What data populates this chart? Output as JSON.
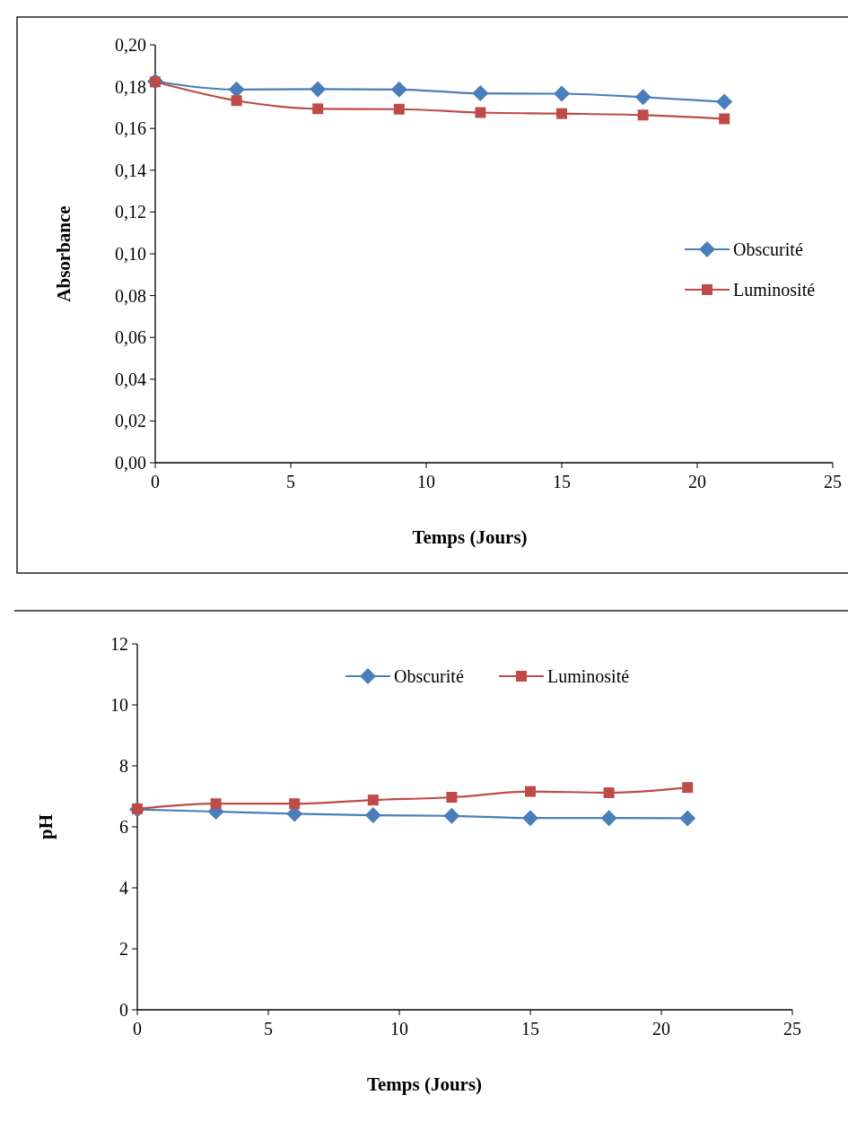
{
  "chart_data": [
    {
      "type": "line",
      "xlabel": "Temps (Jours)",
      "ylabel": "Absorbance",
      "x": [
        0,
        3,
        6,
        9,
        12,
        15,
        18,
        21
      ],
      "series": [
        {
          "name": "Obscurité",
          "color": "#4a7ebb",
          "marker": "diamond",
          "values": [
            0.1825,
            0.1786,
            0.1788,
            0.1786,
            0.1768,
            0.1766,
            0.175,
            0.1727
          ]
        },
        {
          "name": "Luminosité",
          "color": "#be4b48",
          "marker": "square",
          "values": [
            0.1823,
            0.1733,
            0.1694,
            0.1692,
            0.1676,
            0.1671,
            0.1664,
            0.1646
          ]
        }
      ],
      "xlim": [
        0,
        25
      ],
      "xticks": [
        0,
        5,
        10,
        15,
        20,
        25
      ],
      "ylim": [
        0,
        0.2
      ],
      "yticks": [
        {
          "value": 0,
          "label": "0,00"
        },
        {
          "value": 0.02,
          "label": "0,02"
        },
        {
          "value": 0.04,
          "label": "0,04"
        },
        {
          "value": 0.06,
          "label": "0,06"
        },
        {
          "value": 0.08,
          "label": "0,08"
        },
        {
          "value": 0.1,
          "label": "0,10"
        },
        {
          "value": 0.12,
          "label": "0,12"
        },
        {
          "value": 0.14,
          "label": "0,14"
        },
        {
          "value": 0.16,
          "label": "0,16"
        },
        {
          "value": 0.18,
          "label": "0,18"
        },
        {
          "value": 0.2,
          "label": "0,20"
        }
      ],
      "grid": false,
      "legend": "right"
    },
    {
      "type": "line",
      "xlabel": "Temps (Jours)",
      "ylabel": "pH",
      "x": [
        0,
        3,
        6,
        9,
        12,
        15,
        18,
        21
      ],
      "series": [
        {
          "name": "Obscurité",
          "color": "#4a7ebb",
          "marker": "diamond",
          "values": [
            6.57,
            6.5,
            6.43,
            6.38,
            6.36,
            6.29,
            6.29,
            6.28
          ]
        },
        {
          "name": "Luminosité",
          "color": "#be4b48",
          "marker": "square",
          "values": [
            6.59,
            6.76,
            6.76,
            6.88,
            6.97,
            7.16,
            7.12,
            7.29
          ]
        }
      ],
      "xlim": [
        0,
        25
      ],
      "xticks": [
        0,
        5,
        10,
        15,
        20,
        25
      ],
      "ylim": [
        0,
        12
      ],
      "yticks": [
        0,
        2,
        4,
        6,
        8,
        10,
        12
      ],
      "grid": false,
      "legend": "top"
    }
  ]
}
